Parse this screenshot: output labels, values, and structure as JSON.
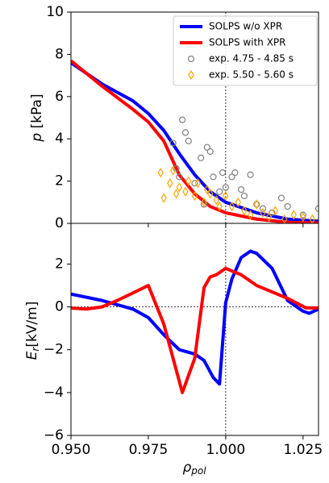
{
  "chart_data": [
    {
      "type": "line",
      "ylabel": "p",
      "ylabel_unit": "[kPa]",
      "ylim": [
        0,
        10
      ],
      "yticks": [
        0,
        2,
        4,
        6,
        8,
        10
      ],
      "vline": 1.0,
      "legend": "upper right",
      "series": [
        {
          "name": "SOLPS w/o XPR",
          "color": "#0000ff",
          "style": "line",
          "x": [
            0.95,
            0.96,
            0.97,
            0.975,
            0.98,
            0.985,
            0.99,
            0.995,
            1.0,
            1.01,
            1.02,
            1.03
          ],
          "values": [
            7.6,
            6.6,
            5.8,
            5.2,
            4.4,
            3.3,
            2.3,
            1.5,
            1.0,
            0.5,
            0.2,
            0.1
          ]
        },
        {
          "name": "SOLPS with XPR",
          "color": "#ff0000",
          "style": "line",
          "x": [
            0.95,
            0.96,
            0.97,
            0.975,
            0.98,
            0.985,
            0.99,
            0.995,
            1.0,
            1.01,
            1.02,
            1.03
          ],
          "values": [
            7.7,
            6.5,
            5.4,
            4.8,
            3.9,
            2.3,
            1.4,
            0.8,
            0.5,
            0.2,
            0.05,
            0.02
          ]
        },
        {
          "name": "exp. 4.75 - 4.85 s",
          "color": "#808080",
          "style": "circle",
          "x": [
            0.983,
            0.984,
            0.985,
            0.986,
            0.987,
            0.988,
            0.99,
            0.992,
            0.993,
            0.994,
            0.995,
            0.996,
            0.998,
            0.999,
            1.0,
            1.002,
            1.003,
            1.005,
            1.006,
            1.008,
            1.01,
            1.012,
            1.015,
            1.018,
            1.02,
            1.025,
            1.03
          ],
          "values": [
            3.8,
            2.6,
            2.2,
            4.9,
            4.3,
            3.9,
            1.9,
            3.1,
            0.9,
            3.6,
            3.4,
            2.2,
            1.5,
            2.4,
            1.7,
            2.2,
            2.4,
            1.6,
            1.3,
            2.3,
            0.9,
            0.7,
            0.5,
            1.2,
            0.8,
            0.4,
            0.7
          ]
        },
        {
          "name": "exp. 5.50 - 5.60 s",
          "color": "#ffa500",
          "style": "diamond",
          "x": [
            0.979,
            0.98,
            0.982,
            0.983,
            0.984,
            0.985,
            0.987,
            0.988,
            0.99,
            0.991,
            0.993,
            0.994,
            0.995,
            0.997,
            0.998,
            1.0,
            1.002,
            1.004,
            1.006,
            1.008,
            1.01,
            1.012,
            1.014,
            1.016,
            1.019,
            1.022,
            1.025,
            1.028
          ],
          "values": [
            2.4,
            1.2,
            1.9,
            2.5,
            1.4,
            1.7,
            1.5,
            2.0,
            1.3,
            1.9,
            1.0,
            1.6,
            1.4,
            1.1,
            0.8,
            1.3,
            0.8,
            1.0,
            0.6,
            0.4,
            0.9,
            0.5,
            0.3,
            0.6,
            0.2,
            0.4,
            0.3,
            0.2
          ]
        }
      ]
    },
    {
      "type": "line",
      "ylabel": "E",
      "ylabel_sub": "r",
      "ylabel_unit": "[kV/m]",
      "xlabel": "ρ",
      "xlabel_sub": "pol",
      "xlim": [
        0.95,
        1.03
      ],
      "xticks": [
        {
          "value": 0.95,
          "label": "0.950"
        },
        0.975,
        {
          "value": 1.0,
          "label": "1.000"
        },
        1.025
      ],
      "ylim": [
        -6,
        3.9
      ],
      "yticks": [
        {
          "value": -6,
          "label": "−6"
        },
        {
          "value": -4,
          "label": "−4"
        },
        {
          "value": -2,
          "label": "−2"
        },
        0,
        2
      ],
      "vline": 1.0,
      "hline": 0,
      "series": [
        {
          "name": "SOLPS w/o XPR",
          "color": "#0000ff",
          "style": "line",
          "x": [
            0.95,
            0.96,
            0.97,
            0.975,
            0.98,
            0.985,
            0.99,
            0.993,
            0.996,
            0.998,
            1.0,
            1.002,
            1.005,
            1.008,
            1.01,
            1.015,
            1.02,
            1.025,
            1.027,
            1.03
          ],
          "values": [
            0.6,
            0.3,
            -0.1,
            -0.5,
            -1.3,
            -2.0,
            -2.2,
            -2.5,
            -3.3,
            -3.6,
            0.2,
            1.3,
            2.3,
            2.6,
            2.5,
            1.8,
            0.3,
            -0.2,
            -0.3,
            -0.1
          ]
        },
        {
          "name": "SOLPS with XPR",
          "color": "#ff0000",
          "style": "line",
          "x": [
            0.95,
            0.955,
            0.96,
            0.965,
            0.975,
            0.98,
            0.986,
            0.99,
            0.993,
            0.995,
            0.997,
            1.0,
            1.005,
            1.01,
            1.02,
            1.026,
            1.03
          ],
          "values": [
            -0.05,
            -0.1,
            0.0,
            0.3,
            1.0,
            -0.8,
            -4.0,
            -2.4,
            0.9,
            1.4,
            1.5,
            1.8,
            1.5,
            1.0,
            0.4,
            -0.05,
            -0.05
          ]
        }
      ]
    }
  ]
}
